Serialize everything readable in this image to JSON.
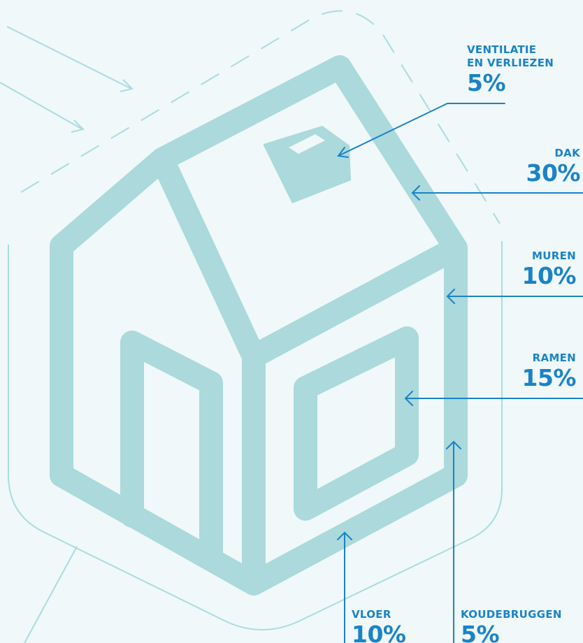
{
  "colors": {
    "background": "#f0f8f9",
    "house": "#abd9dc",
    "outline": "#aadcdf",
    "arrow": "#1a83c6",
    "label": "#1a83c6"
  },
  "labels": {
    "ventilatie": {
      "name_line1": "VENTILATIE",
      "name_line2": "EN VERLIEZEN",
      "percentage": "5%"
    },
    "dak": {
      "name": "DAK",
      "percentage": "30%"
    },
    "muren": {
      "name": "MUREN",
      "percentage": "10%"
    },
    "ramen": {
      "name": "RAMEN",
      "percentage": "15%"
    },
    "vloer": {
      "name": "VLOER",
      "percentage": "10%"
    },
    "koudebruggen": {
      "name": "KOUDEBRUGGEN",
      "percentage": "5%"
    }
  }
}
